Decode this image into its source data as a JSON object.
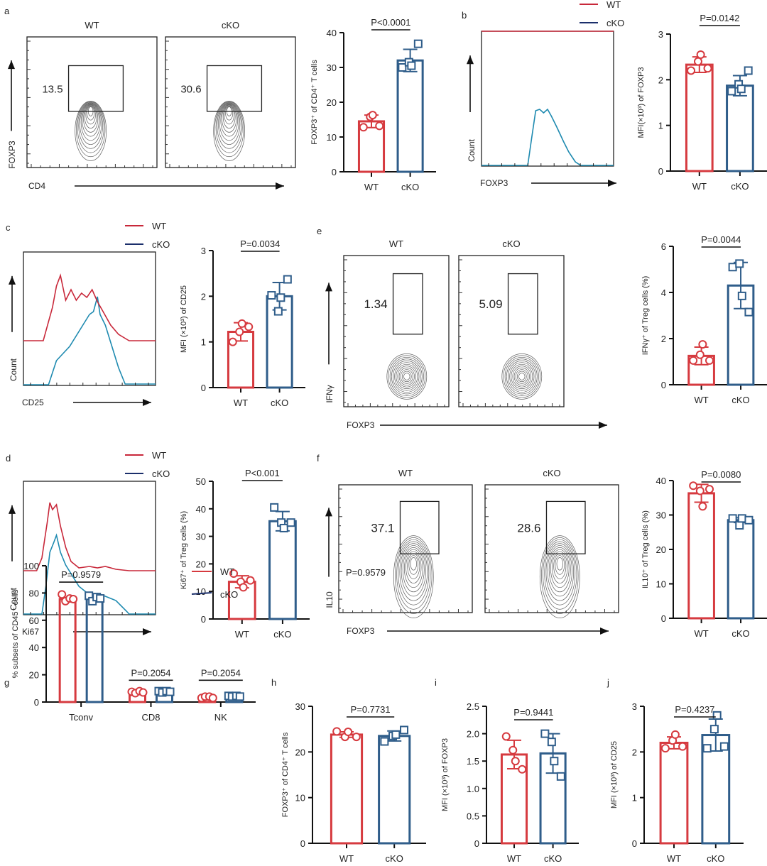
{
  "colors": {
    "wt": "#d63a3f",
    "cko": "#2f5d8a",
    "wt_hist": "#c8283a",
    "cko_hist": "#1e8ab0",
    "axis": "#111111",
    "contour": "#444444"
  },
  "panel_labels": [
    "a",
    "b",
    "c",
    "d",
    "e",
    "f",
    "g",
    "h",
    "i",
    "j"
  ],
  "legend": {
    "wt": "WT",
    "cko": "cKO"
  },
  "flow_plots": [
    {
      "id": "a",
      "xlabel": "CD4",
      "ylabel": "FOXP3",
      "panels": [
        {
          "title": "WT",
          "gate_value": "13.5"
        },
        {
          "title": "cKO",
          "gate_value": "30.6"
        }
      ]
    },
    {
      "id": "e",
      "xlabel": "FOXP3",
      "ylabel": "IFNγ",
      "panels": [
        {
          "title": "WT",
          "gate_value": "1.34"
        },
        {
          "title": "cKO",
          "gate_value": "5.09"
        }
      ]
    },
    {
      "id": "f",
      "xlabel": "FOXP3",
      "ylabel": "IL10",
      "annotation": "P=0.9579",
      "panels": [
        {
          "title": "WT",
          "gate_value": "37.1"
        },
        {
          "title": "cKO",
          "gate_value": "28.6"
        }
      ]
    }
  ],
  "histograms": [
    {
      "id": "b",
      "xlabel": "FOXP3",
      "ylabel": "Count"
    },
    {
      "id": "c",
      "xlabel": "CD25",
      "ylabel": "Count"
    },
    {
      "id": "d",
      "xlabel": "Ki67",
      "ylabel": "Count"
    }
  ],
  "chart_data": [
    {
      "id": "a",
      "type": "bar",
      "categories": [
        "WT",
        "cKO"
      ],
      "ylabel": "FOXP3⁺ of CD4⁺ T cells",
      "ylim": [
        0,
        40
      ],
      "yticks": [
        0,
        10,
        20,
        30,
        40
      ],
      "pvalue": "P<0.0001",
      "series": [
        {
          "name": "WT",
          "mean": 14.5,
          "sd": 1.8,
          "points": [
            12.8,
            15.8,
            16.3,
            13.2
          ]
        },
        {
          "name": "cKO",
          "mean": 32.0,
          "sd": 3.2,
          "points": [
            30.0,
            31.5,
            30.5,
            36.8
          ]
        }
      ]
    },
    {
      "id": "b",
      "type": "bar",
      "categories": [
        "WT",
        "cKO"
      ],
      "ylabel": "MFI(×10³) of FOXP3",
      "ylim": [
        0,
        3
      ],
      "yticks": [
        0,
        1,
        2,
        3
      ],
      "pvalue": "P=0.0142",
      "series": [
        {
          "name": "WT",
          "mean": 2.33,
          "sd": 0.17,
          "points": [
            2.2,
            2.4,
            2.55,
            2.25
          ]
        },
        {
          "name": "cKO",
          "mean": 1.87,
          "sd": 0.22,
          "points": [
            1.75,
            1.9,
            1.8,
            2.2
          ]
        }
      ]
    },
    {
      "id": "c",
      "type": "bar",
      "categories": [
        "WT",
        "cKO"
      ],
      "ylabel": "MFI (×10³) of CD25",
      "ylim": [
        0,
        3
      ],
      "yticks": [
        0,
        1,
        2,
        3
      ],
      "pvalue": "P=0.0034",
      "series": [
        {
          "name": "WT",
          "mean": 1.22,
          "sd": 0.2,
          "points": [
            1.0,
            1.22,
            1.4,
            1.33
          ]
        },
        {
          "name": "cKO",
          "mean": 2.0,
          "sd": 0.3,
          "points": [
            2.02,
            1.67,
            1.97,
            2.37
          ]
        }
      ]
    },
    {
      "id": "e",
      "type": "bar",
      "categories": [
        "WT",
        "cKO"
      ],
      "ylabel": "IFNγ⁺ of Treg cells (%)",
      "ylim": [
        0,
        6
      ],
      "yticks": [
        0,
        2,
        4,
        6
      ],
      "pvalue": "P=0.0044",
      "series": [
        {
          "name": "WT",
          "mean": 1.25,
          "sd": 0.38,
          "points": [
            1.05,
            1.3,
            1.75,
            1.05
          ]
        },
        {
          "name": "cKO",
          "mean": 4.3,
          "sd": 1.0,
          "points": [
            5.1,
            5.25,
            3.85,
            3.15
          ]
        }
      ]
    },
    {
      "id": "d",
      "type": "bar",
      "categories": [
        "WT",
        "cKO"
      ],
      "ylabel": "Ki67⁺ of Treg cells (%)",
      "ylim": [
        0,
        50
      ],
      "yticks": [
        0,
        10,
        20,
        30,
        40,
        50
      ],
      "pvalue": "P<0.001",
      "series": [
        {
          "name": "WT",
          "mean": 13.5,
          "sd": 2.2,
          "points": [
            16.5,
            13.5,
            11.5,
            14.0
          ]
        },
        {
          "name": "cKO",
          "mean": 35.5,
          "sd": 3.5,
          "points": [
            40.5,
            35.0,
            33.0,
            35.0
          ]
        }
      ]
    },
    {
      "id": "f",
      "type": "bar",
      "categories": [
        "WT",
        "cKO"
      ],
      "ylabel": "IL10⁺ of Treg cells (%)",
      "ylim": [
        0,
        40
      ],
      "yticks": [
        0,
        10,
        20,
        30,
        40
      ],
      "pvalue": "P=0.0080",
      "series": [
        {
          "name": "WT",
          "mean": 36.3,
          "sd": 2.6,
          "points": [
            38.5,
            37.0,
            32.5,
            37.5
          ]
        },
        {
          "name": "cKO",
          "mean": 28.5,
          "sd": 0.7,
          "points": [
            29.0,
            27.0,
            29.0,
            28.5
          ]
        }
      ]
    },
    {
      "id": "g",
      "type": "grouped-bar",
      "categories": [
        "Tconv",
        "CD8",
        "NK"
      ],
      "ylabel": "% subsets of CD45⁺ cells",
      "ylim": [
        0,
        100
      ],
      "yticks": [
        0,
        20,
        40,
        60,
        80,
        100
      ],
      "pvalues": [
        "P=0.9579",
        "P=0.2054",
        "P=0.2054"
      ],
      "legend": "top-right",
      "series": [
        {
          "name": "WT",
          "means": [
            75.5,
            7.0,
            3.5
          ],
          "points": [
            [
              79,
              74,
              76,
              75.5
            ],
            [
              7.5,
              6.5,
              8,
              7
            ],
            [
              3,
              4,
              4,
              3
            ]
          ]
        },
        {
          "name": "cKO",
          "means": [
            76.0,
            7.5,
            4.0
          ],
          "points": [
            [
              78,
              74,
              77,
              76
            ],
            [
              8,
              7,
              8,
              7.5
            ],
            [
              4.5,
              4,
              4.5,
              4
            ]
          ]
        }
      ]
    },
    {
      "id": "h",
      "type": "bar",
      "categories": [
        "WT",
        "cKO"
      ],
      "ylabel": "FOXP3⁺ of CD4⁺ T cells",
      "ylim": [
        0,
        30
      ],
      "yticks": [
        0,
        10,
        20,
        30
      ],
      "pvalue": "P=0.7731",
      "series": [
        {
          "name": "WT",
          "mean": 23.8,
          "sd": 0.6,
          "points": [
            24.5,
            23.3,
            24.4,
            23.3
          ]
        },
        {
          "name": "cKO",
          "mean": 23.5,
          "sd": 1.1,
          "points": [
            22.3,
            23.5,
            23.8,
            24.8
          ]
        }
      ]
    },
    {
      "id": "i",
      "type": "bar",
      "categories": [
        "WT",
        "cKO"
      ],
      "ylabel": "MFI (×10³) of FOXP3",
      "ylim": [
        0,
        2.5
      ],
      "yticks": [
        0,
        0.5,
        1.0,
        1.5,
        2.0,
        2.5
      ],
      "ytick_labels": [
        "0",
        "0.5",
        "1.0",
        "1.5",
        "2.0",
        "2.5"
      ],
      "pvalue": "P=0.9441",
      "series": [
        {
          "name": "WT",
          "mean": 1.62,
          "sd": 0.26,
          "points": [
            1.95,
            1.7,
            1.5,
            1.35
          ]
        },
        {
          "name": "cKO",
          "mean": 1.64,
          "sd": 0.36,
          "points": [
            2.0,
            1.85,
            1.5,
            1.22
          ]
        }
      ]
    },
    {
      "id": "j",
      "type": "bar",
      "categories": [
        "WT",
        "cKO"
      ],
      "ylabel": "MFI (×10³) of CD25",
      "ylim": [
        0,
        3
      ],
      "yticks": [
        0,
        1,
        2,
        3
      ],
      "pvalue": "P=0.4237",
      "series": [
        {
          "name": "WT",
          "mean": 2.2,
          "sd": 0.13,
          "points": [
            2.08,
            2.25,
            2.38,
            2.12
          ]
        },
        {
          "name": "cKO",
          "mean": 2.37,
          "sd": 0.35,
          "points": [
            2.08,
            2.5,
            2.8,
            2.12
          ]
        }
      ]
    }
  ]
}
